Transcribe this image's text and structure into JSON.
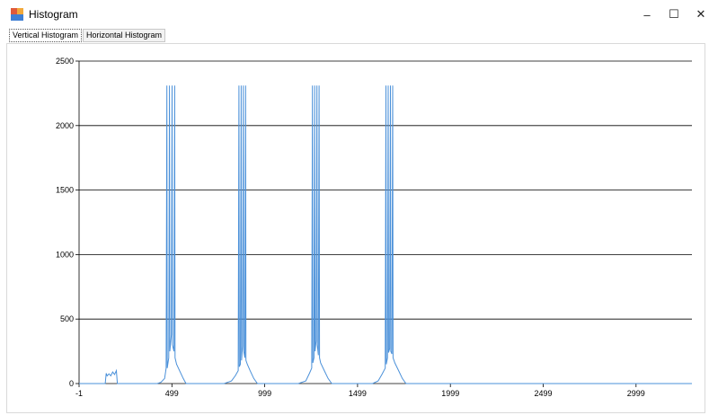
{
  "window": {
    "title": "Histogram",
    "minimize_glyph": "–",
    "maximize_glyph": "☐",
    "close_glyph": "✕"
  },
  "tabs": [
    {
      "label": "Vertical Histogram",
      "active": true
    },
    {
      "label": "Horizontal Histogram",
      "active": false
    }
  ],
  "colors": {
    "series": "#4a90d9",
    "grid": "#000000",
    "app_icon_red": "#e05a3a",
    "app_icon_blue": "#3f7fd4"
  },
  "chart_data": {
    "type": "line",
    "title": "",
    "xlabel": "",
    "ylabel": "",
    "xlim": [
      -1,
      3300
    ],
    "ylim": [
      0,
      2500
    ],
    "x_ticks": [
      -1,
      499,
      999,
      1499,
      1999,
      2499,
      2999
    ],
    "y_ticks": [
      0,
      500,
      1000,
      1500,
      2000,
      2500
    ],
    "grid": true,
    "series": [
      {
        "values": [
          [
            -1,
            0
          ],
          [
            140,
            0
          ],
          [
            145,
            80
          ],
          [
            150,
            60
          ],
          [
            160,
            75
          ],
          [
            170,
            60
          ],
          [
            180,
            90
          ],
          [
            190,
            70
          ],
          [
            200,
            100
          ],
          [
            205,
            0
          ],
          [
            215,
            0
          ],
          [
            420,
            0
          ],
          [
            440,
            10
          ],
          [
            460,
            40
          ],
          [
            468,
            120
          ],
          [
            472,
            2310
          ],
          [
            474,
            120
          ],
          [
            482,
            200
          ],
          [
            486,
            2310
          ],
          [
            488,
            250
          ],
          [
            496,
            380
          ],
          [
            500,
            2310
          ],
          [
            502,
            300
          ],
          [
            510,
            250
          ],
          [
            514,
            2310
          ],
          [
            516,
            200
          ],
          [
            524,
            150
          ],
          [
            540,
            100
          ],
          [
            560,
            40
          ],
          [
            575,
            0
          ],
          [
            780,
            0
          ],
          [
            820,
            20
          ],
          [
            840,
            60
          ],
          [
            856,
            100
          ],
          [
            860,
            2310
          ],
          [
            862,
            130
          ],
          [
            868,
            150
          ],
          [
            872,
            2310
          ],
          [
            874,
            180
          ],
          [
            880,
            290
          ],
          [
            884,
            2310
          ],
          [
            886,
            250
          ],
          [
            892,
            200
          ],
          [
            896,
            2310
          ],
          [
            898,
            180
          ],
          [
            905,
            150
          ],
          [
            920,
            100
          ],
          [
            940,
            40
          ],
          [
            960,
            0
          ],
          [
            1180,
            0
          ],
          [
            1220,
            20
          ],
          [
            1240,
            80
          ],
          [
            1252,
            120
          ],
          [
            1256,
            2310
          ],
          [
            1258,
            160
          ],
          [
            1264,
            200
          ],
          [
            1268,
            2310
          ],
          [
            1270,
            250
          ],
          [
            1276,
            330
          ],
          [
            1280,
            2310
          ],
          [
            1282,
            300
          ],
          [
            1288,
            220
          ],
          [
            1292,
            2310
          ],
          [
            1294,
            200
          ],
          [
            1300,
            160
          ],
          [
            1320,
            100
          ],
          [
            1340,
            40
          ],
          [
            1360,
            0
          ],
          [
            1580,
            0
          ],
          [
            1610,
            20
          ],
          [
            1630,
            70
          ],
          [
            1648,
            120
          ],
          [
            1652,
            2310
          ],
          [
            1654,
            150
          ],
          [
            1660,
            200
          ],
          [
            1664,
            2310
          ],
          [
            1666,
            240
          ],
          [
            1672,
            270
          ],
          [
            1676,
            2310
          ],
          [
            1678,
            250
          ],
          [
            1684,
            230
          ],
          [
            1688,
            2310
          ],
          [
            1690,
            200
          ],
          [
            1700,
            160
          ],
          [
            1720,
            100
          ],
          [
            1740,
            40
          ],
          [
            1760,
            0
          ],
          [
            3300,
            0
          ]
        ]
      }
    ]
  }
}
